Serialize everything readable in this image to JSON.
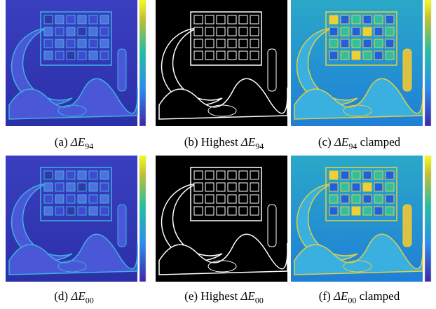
{
  "panels": [
    {
      "label": "(a)",
      "quantity": "ΔE",
      "subscript": "94",
      "style": "heatmap"
    },
    {
      "label": "(b)",
      "prefix": "Highest",
      "quantity": "ΔE",
      "subscript": "94",
      "style": "binary"
    },
    {
      "label": "(c)",
      "quantity": "ΔE",
      "subscript": "94",
      "suffix": "clamped",
      "style": "clamped"
    },
    {
      "label": "(d)",
      "quantity": "ΔE",
      "subscript": "00",
      "style": "heatmap"
    },
    {
      "label": "(e)",
      "prefix": "Highest",
      "quantity": "ΔE",
      "subscript": "00",
      "style": "binary"
    },
    {
      "label": "(f)",
      "quantity": "ΔE",
      "subscript": "00",
      "suffix": "clamped",
      "style": "clamped"
    }
  ]
}
